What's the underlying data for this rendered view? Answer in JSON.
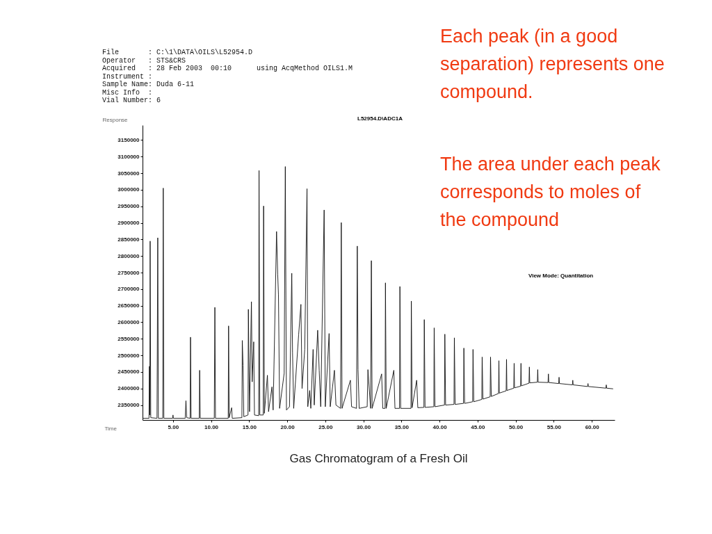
{
  "chart_data": {
    "type": "line",
    "title": "Gas Chromatogram of a Fresh Oil",
    "xlabel": "Time",
    "ylabel": "Response",
    "color": "#111111",
    "annotations": [
      "File       : C:\\1\\DATA\\OILS\\L52954.D",
      "Operator   : STS&CRS",
      "Acquired   : 28 Feb 2003  00:10      using AcqMethod OILS1.M",
      "Instrument :",
      "Sample Name: Duda 6-11",
      "Misc Info  :",
      "Vial Number: 6",
      "L52954.D\\ADC1A",
      "View Mode: Quantitation",
      "Each peak (in a good separation) represents one compound.",
      "The area under each peak corresponds to moles of the compound"
    ],
    "xlim": [
      1,
      63
    ],
    "ylim": [
      2305000,
      3195000
    ],
    "xticks": [
      {
        "value": 5,
        "label": "5.00"
      },
      {
        "value": 10,
        "label": "10.00"
      },
      {
        "value": 15,
        "label": "15.00"
      },
      {
        "value": 20,
        "label": "20.00"
      },
      {
        "value": 25,
        "label": "25.00"
      },
      {
        "value": 30,
        "label": "30.00"
      },
      {
        "value": 35,
        "label": "35.00"
      },
      {
        "value": 40,
        "label": "40.00"
      },
      {
        "value": 45,
        "label": "45.00"
      },
      {
        "value": 50,
        "label": "50.00"
      },
      {
        "value": 55,
        "label": "55.00"
      },
      {
        "value": 60,
        "label": "60.00"
      }
    ],
    "yticks": [
      2350000,
      2400000,
      2450000,
      2500000,
      2550000,
      2600000,
      2650000,
      2700000,
      2750000,
      2800000,
      2850000,
      2900000,
      2950000,
      3000000,
      3050000,
      3100000,
      3150000
    ],
    "x": [
      1.0,
      1.85,
      1.9,
      1.95,
      2.0,
      2.08,
      2.9,
      3.0,
      3.08,
      3.65,
      3.72,
      3.8,
      4.95,
      5.0,
      5.05,
      6.6,
      6.7,
      6.8,
      7.25,
      7.3,
      7.38,
      8.45,
      8.5,
      8.58,
      10.42,
      10.5,
      10.58,
      12.25,
      12.3,
      12.38,
      12.7,
      12.78,
      14.05,
      14.1,
      14.2,
      14.3,
      14.85,
      14.9,
      15.05,
      15.3,
      15.4,
      15.6,
      15.7,
      16.25,
      16.3,
      16.4,
      16.85,
      16.9,
      17.0,
      17.4,
      17.55,
      18.0,
      18.15,
      18.6,
      18.75,
      18.85,
      19.0,
      19.6,
      19.75,
      19.9,
      20.3,
      20.6,
      20.7,
      20.85,
      21.5,
      21.8,
      21.95,
      22.3,
      22.6,
      22.7,
      22.95,
      23.1,
      23.4,
      23.55,
      24.0,
      24.2,
      24.4,
      24.85,
      25.0,
      25.5,
      25.65,
      26.2,
      26.4,
      27.0,
      27.1,
      27.2,
      28.3,
      28.45,
      29.1,
      29.2,
      29.3,
      29.45,
      30.5,
      30.6,
      30.95,
      31.05,
      31.15,
      32.4,
      32.55,
      32.85,
      32.9,
      33.0,
      34.0,
      34.15,
      34.75,
      34.8,
      34.9,
      36.25,
      36.3,
      36.4,
      37.0,
      37.15,
      37.95,
      38.0,
      38.1,
      39.25,
      39.3,
      39.4,
      40.65,
      40.7,
      40.8,
      41.9,
      41.95,
      42.05,
      43.15,
      43.2,
      43.3,
      44.35,
      44.4,
      44.5,
      45.55,
      45.6,
      45.7,
      46.65,
      46.7,
      46.8,
      47.75,
      47.8,
      47.85,
      48.75,
      48.8,
      48.85,
      49.75,
      49.8,
      49.85,
      50.65,
      50.7,
      50.75,
      51.75,
      51.8,
      51.85,
      52.85,
      52.9,
      52.95,
      54.25,
      54.3,
      54.35,
      55.65,
      55.7,
      55.75,
      57.45,
      57.5,
      57.55,
      59.45,
      59.5,
      59.55,
      61.85,
      61.9,
      61.95,
      62.8
    ],
    "values": [
      2310000,
      2310000,
      2467000,
      2320000,
      2845000,
      2312000,
      2310000,
      2855000,
      2310000,
      2310000,
      3005000,
      2310000,
      2310000,
      2320000,
      2310000,
      2310000,
      2363000,
      2312000,
      2310000,
      2555000,
      2310000,
      2310000,
      2455000,
      2310000,
      2310000,
      2645000,
      2310000,
      2310000,
      2589000,
      2312000,
      2342000,
      2310000,
      2312000,
      2545000,
      2470000,
      2315000,
      2320000,
      2639000,
      2330000,
      2662000,
      2420000,
      2541000,
      2320000,
      2318000,
      3058000,
      2320000,
      2320000,
      2951000,
      2325000,
      2440000,
      2330000,
      2405000,
      2335000,
      2874000,
      2744000,
      2683000,
      2340000,
      2446000,
      3070000,
      2335000,
      2345000,
      2748000,
      2507000,
      2340000,
      2562000,
      2654000,
      2400000,
      2518000,
      3003000,
      2345000,
      2394000,
      2340000,
      2518000,
      2350000,
      2576000,
      2455000,
      2345000,
      2939000,
      2345000,
      2566000,
      2345000,
      2455000,
      2350000,
      2340000,
      2901000,
      2340000,
      2425000,
      2345000,
      2340000,
      2830000,
      2457000,
      2340000,
      2345000,
      2457000,
      2340000,
      2786000,
      2340000,
      2444000,
      2340000,
      2340000,
      2719000,
      2340000,
      2455000,
      2340000,
      2340000,
      2708000,
      2340000,
      2340000,
      2664000,
      2342000,
      2425000,
      2342000,
      2343000,
      2608000,
      2343000,
      2345000,
      2583000,
      2345000,
      2350000,
      2564000,
      2350000,
      2352000,
      2553000,
      2352000,
      2355000,
      2522000,
      2355000,
      2360000,
      2518000,
      2360000,
      2367000,
      2495000,
      2368000,
      2375000,
      2495000,
      2376000,
      2385000,
      2484000,
      2386000,
      2393000,
      2488000,
      2394000,
      2401000,
      2476000,
      2402000,
      2407000,
      2476000,
      2408000,
      2416000,
      2465000,
      2417000,
      2419000,
      2457000,
      2419000,
      2418000,
      2444000,
      2418000,
      2415000,
      2434000,
      2415000,
      2411000,
      2425000,
      2411000,
      2406000,
      2415000,
      2406000,
      2401000,
      2411000,
      2401000,
      2399000
    ]
  }
}
